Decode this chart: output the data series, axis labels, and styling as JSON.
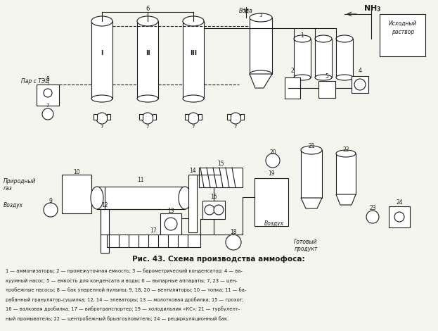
{
  "title": "Рис. 43. Схема производства аммофоса:",
  "caption_lines": [
    "1 — аммонизаторы; 2 — промежуточная емкость; 3 — барометрический конденсатор; 4 — ва-",
    "куумный насос; 5 — емкость для конденсата и воды; 6 — выпарные аппараты; 7, 23 — цен-",
    "тробежные насосы; 8 — бак упаренной пулыпы; 9, 18, 20 — вентиляторы; 10 — топка; 11 — ба-",
    "рабанный гранулятор-сушилка; 12, 14 — элеваторы; 13 — молотковая дробилка; 15 — грохот;",
    "16 — валковая дробилка; 17 — вибротранспортер; 19 — холодильник «КС»; 21 — турбулент-",
    "ный промыватель; 22 — центробежный брызгоуловитель; 24 — рециркуляционный бак."
  ],
  "bg_color": "#f5f5f0",
  "text_color": "#1a1a1a",
  "diagram_color": "#1a1a1a",
  "fig_width": 6.23,
  "fig_height": 4.7
}
